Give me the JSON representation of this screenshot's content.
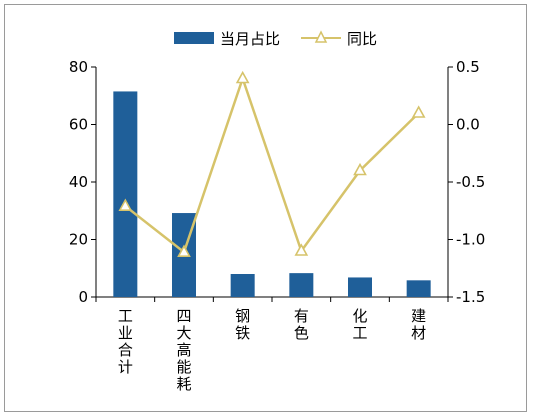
{
  "chart_data": {
    "type": "bar",
    "categories": [
      "工业合计",
      "四大高能耗",
      "钢铁",
      "有色",
      "化工",
      "建材"
    ],
    "series": [
      {
        "name": "当月占比",
        "type": "bar",
        "axis": "left",
        "values": [
          71.5,
          29.2,
          8.0,
          8.3,
          6.8,
          5.8
        ]
      },
      {
        "name": "同比",
        "type": "line",
        "axis": "right",
        "values": [
          -0.71,
          -1.11,
          0.4,
          -1.1,
          -0.4,
          0.1
        ]
      }
    ],
    "y_left": {
      "min": 0,
      "max": 80,
      "ticks": [
        0,
        20,
        40,
        60,
        80
      ]
    },
    "y_right": {
      "min": -1.5,
      "max": 0.5,
      "ticks": [
        "-1.5",
        "-1.0",
        "-0.5",
        "0.0",
        "0.5"
      ]
    },
    "legend_position": "top",
    "grid": false,
    "colors": {
      "bar": "#1f5f99",
      "line": "#d6c36a",
      "marker_fill": "#ffffff",
      "axis": "#000000"
    }
  }
}
